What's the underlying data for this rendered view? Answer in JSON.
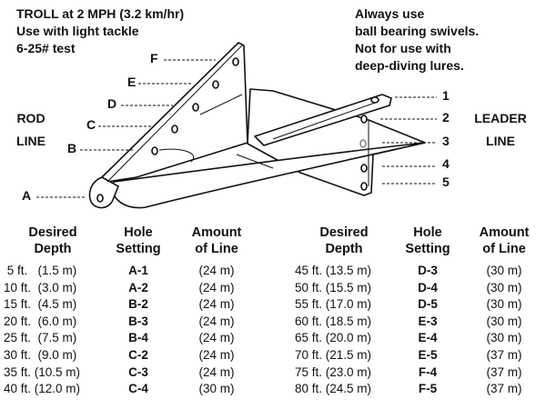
{
  "notes_left": [
    "TROLL at 2 MPH (3.2 km/hr)",
    "Use with light tackle",
    "6-25# test"
  ],
  "notes_right": [
    "Always use",
    "ball bearing swivels.",
    "Not for use with",
    "deep-diving lures."
  ],
  "rod_line": [
    "ROD",
    "LINE"
  ],
  "leader_line": [
    "LEADER",
    "LINE"
  ],
  "fin_holes": [
    "A",
    "B",
    "C",
    "D",
    "E",
    "F"
  ],
  "body_holes": [
    "1",
    "2",
    "3",
    "4",
    "5"
  ],
  "table_headers": {
    "depth": [
      "Desired",
      "Depth"
    ],
    "hole": [
      "Hole",
      "Setting"
    ],
    "line": [
      "Amount",
      "of Line"
    ]
  },
  "table_left": [
    {
      "depth": " 5 ft.   (1.5 m)",
      "hole": "A-1",
      "line": "(24 m)"
    },
    {
      "depth": "10 ft.  (3.0 m)",
      "hole": "A-2",
      "line": "(24 m)"
    },
    {
      "depth": "15 ft.  (4.5 m)",
      "hole": "B-2",
      "line": "(24 m)"
    },
    {
      "depth": "20 ft.  (6.0 m)",
      "hole": "B-3",
      "line": "(24 m)"
    },
    {
      "depth": "25 ft.  (7.5 m)",
      "hole": "B-4",
      "line": "(24 m)"
    },
    {
      "depth": "30 ft.  (9.0 m)",
      "hole": "C-2",
      "line": "(24 m)"
    },
    {
      "depth": "35 ft. (10.5 m)",
      "hole": "C-3",
      "line": "(24 m)"
    },
    {
      "depth": "40 ft. (12.0 m)",
      "hole": "C-4",
      "line": "(30 m)"
    }
  ],
  "table_right": [
    {
      "depth": "45 ft. (13.5 m)",
      "hole": "D-3",
      "line": "(30 m)"
    },
    {
      "depth": "50 ft. (15.5 m)",
      "hole": "D-4",
      "line": "(30 m)"
    },
    {
      "depth": "55 ft. (17.0 m)",
      "hole": "D-5",
      "line": "(30 m)"
    },
    {
      "depth": "60 ft. (18.5 m)",
      "hole": "E-3",
      "line": "(30 m)"
    },
    {
      "depth": "65 ft. (20.0 m)",
      "hole": "E-4",
      "line": "(30 m)"
    },
    {
      "depth": "70 ft. (21.5 m)",
      "hole": "E-5",
      "line": "(37 m)"
    },
    {
      "depth": "75 ft. (23.0 m)",
      "hole": "F-4",
      "line": "(37 m)"
    },
    {
      "depth": "80 ft. (24.5 m)",
      "hole": "F-5",
      "line": "(37 m)"
    }
  ]
}
